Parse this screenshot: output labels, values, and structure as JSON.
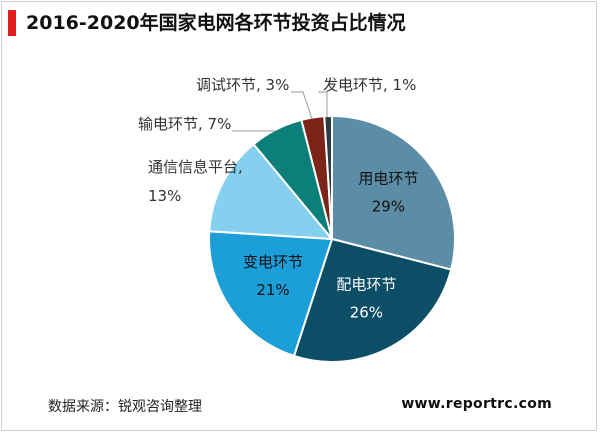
{
  "title": "2016-2020年国家电网各环节投资占比情况",
  "source": "数据来源：锐观咨询整理",
  "website": "www.reportrc.com",
  "colors": {
    "title_bar": "#e01e1e"
  },
  "chart_data": {
    "type": "pie",
    "title": "2016-2020年国家电网各环节投资占比情况",
    "start": "12 o'clock",
    "direction": "clockwise",
    "slices": [
      {
        "label": "用电环节",
        "value": 29,
        "value_label": "29%",
        "color": "#5b8ea6",
        "label_position": "inside",
        "text_color": "#111111"
      },
      {
        "label": "配电环节",
        "value": 26,
        "value_label": "26%",
        "color": "#0b4e66",
        "label_position": "inside",
        "text_color": "#ffffff"
      },
      {
        "label": "变电环节",
        "value": 21,
        "value_label": "21%",
        "color": "#1c9ed8",
        "label_position": "inside",
        "text_color": "#111111"
      },
      {
        "label": "通信信息平台",
        "value": 13,
        "value_label": "13%",
        "color": "#86d0ef",
        "label_position": "outside",
        "text_color": "#333333"
      },
      {
        "label": "输电环节",
        "value": 7,
        "value_label": "7%",
        "color": "#0d7f7a",
        "label_position": "outside",
        "text_color": "#333333"
      },
      {
        "label": "调试环节",
        "value": 3,
        "value_label": "3%",
        "color": "#7b2417",
        "label_position": "outside",
        "text_color": "#333333"
      },
      {
        "label": "发电环节",
        "value": 1,
        "value_label": "1%",
        "color": "#2f3b44",
        "label_position": "outside",
        "text_color": "#333333"
      }
    ]
  }
}
